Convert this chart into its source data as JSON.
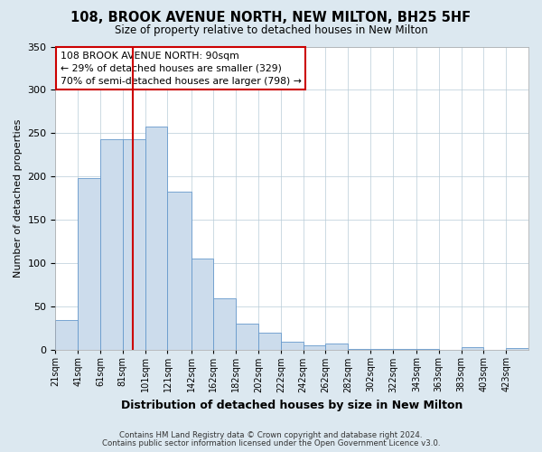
{
  "title": "108, BROOK AVENUE NORTH, NEW MILTON, BH25 5HF",
  "subtitle": "Size of property relative to detached houses in New Milton",
  "xlabel": "Distribution of detached houses by size in New Milton",
  "ylabel": "Number of detached properties",
  "bar_labels": [
    "21sqm",
    "41sqm",
    "61sqm",
    "81sqm",
    "101sqm",
    "121sqm",
    "142sqm",
    "162sqm",
    "182sqm",
    "202sqm",
    "222sqm",
    "242sqm",
    "262sqm",
    "282sqm",
    "302sqm",
    "322sqm",
    "343sqm",
    "363sqm",
    "383sqm",
    "403sqm",
    "423sqm"
  ],
  "bar_values": [
    35,
    198,
    243,
    243,
    258,
    183,
    106,
    60,
    30,
    20,
    10,
    5,
    8,
    1,
    1,
    1,
    1,
    0,
    3,
    0,
    2
  ],
  "bar_edges": [
    21,
    41,
    61,
    81,
    101,
    121,
    142,
    162,
    182,
    202,
    222,
    242,
    262,
    282,
    302,
    322,
    343,
    363,
    383,
    403,
    423,
    443
  ],
  "bar_color": "#ccdcec",
  "bar_edge_color": "#6699cc",
  "reference_line_x": 90,
  "reference_line_color": "#cc0000",
  "ylim": [
    0,
    350
  ],
  "yticks": [
    0,
    50,
    100,
    150,
    200,
    250,
    300,
    350
  ],
  "annotation_title": "108 BROOK AVENUE NORTH: 90sqm",
  "annotation_line1": "← 29% of detached houses are smaller (329)",
  "annotation_line2": "70% of semi-detached houses are larger (798) →",
  "annotation_box_color": "#ffffff",
  "annotation_box_edge_color": "#cc0000",
  "footer_line1": "Contains HM Land Registry data © Crown copyright and database right 2024.",
  "footer_line2": "Contains public sector information licensed under the Open Government Licence v3.0.",
  "bg_color": "#dce8f0",
  "plot_bg_color": "#ffffff",
  "grid_color": "#b8ccd8"
}
